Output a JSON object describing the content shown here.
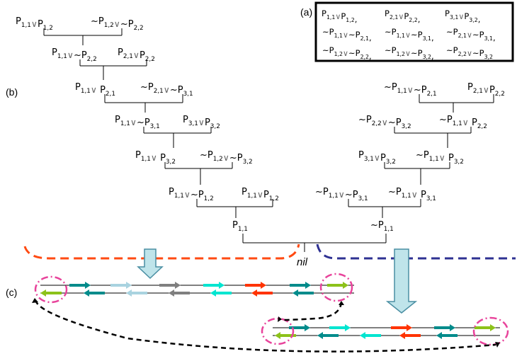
{
  "labels": {
    "a": "(a)",
    "b": "(b)",
    "c": "(c)",
    "nil": "nil"
  },
  "clause_box": {
    "row1": [
      "P1,1∨P1,2,",
      "P2,1∨P2,2,",
      "P3,1∨P3,2,"
    ],
    "row2": [
      "~P1,1∨~P2,1,",
      "~P1,1∨~P3,1,",
      "~P2,1∨~P3,1,"
    ],
    "row3": [
      "~P1,2∨~P2,2,",
      "~P1,2∨~P3,2,",
      "~P2,2∨~P3,2"
    ]
  },
  "left_tree": [
    {
      "left": "P1,1∨P1,2",
      "right": "~P1,2∨~P2,2"
    },
    {
      "left": "P1,1∨~P2,2",
      "right": "P2,1∨P2,2"
    },
    {
      "left": "P1,1∨ P2,1",
      "right": "~P2,1∨~P3,1"
    },
    {
      "left": "P1,1∨~P3,1",
      "right": "P3,1∨P3,2"
    },
    {
      "left": "P1,1∨ P3,2",
      "right": "~P1,2∨~P3,2"
    },
    {
      "left": "P1,1∨~P1,2",
      "right": "P1,1∨P1,2"
    }
  ],
  "right_tree": [
    {
      "left": "~P1,1∨~P2,1",
      "right": "P2,1∨P2,2"
    },
    {
      "left": "~P2,2∨~P3,2",
      "right": "~P1,1∨ P2,2"
    },
    {
      "left": "P3,1∨P3,2",
      "right": "~P1,1∨ P3,2"
    },
    {
      "left": "~P1,1∨~P3,1",
      "right": "~P1,1∨ P3,1"
    }
  ],
  "final": {
    "left": "P1,1",
    "right": "~P1,1"
  },
  "colors": {
    "red_dash": "#ff4a12",
    "blue_dash": "#2e3192",
    "magenta": "#e8439b",
    "teal": "#008b8b",
    "light_blue": "#a9d3e0",
    "gray": "#7f7f7f",
    "cyan": "#00e5d0",
    "red": "#ff3300",
    "green": "#8cc21a",
    "arrow_fill": "#bfe4ea",
    "arrow_stroke": "#4a8fa3"
  }
}
